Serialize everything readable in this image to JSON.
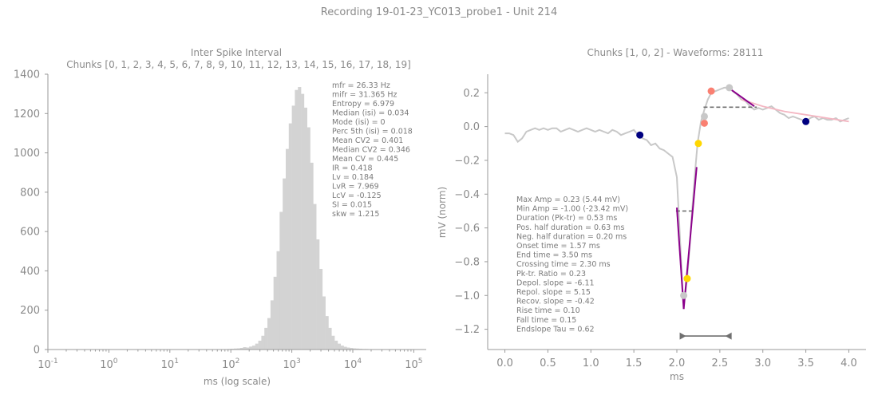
{
  "suptitle": "Recording 19-01-23_YC013_probe1 - Unit 214",
  "chart_data": [
    {
      "type": "histogram",
      "title": "Inter Spike Interval",
      "subtitle": "Chunks [0, 1, 2, 3, 4, 5, 6, 7, 8, 9, 10, 11, 12, 13, 14, 15, 16, 17, 18, 19]",
      "xlabel": "ms (log scale)",
      "ylabel": "",
      "xscale": "log",
      "xlim": [
        0.1,
        160000
      ],
      "ylim": [
        0,
        1400
      ],
      "xticks": [
        "10^-1",
        "10^0",
        "10^1",
        "10^2",
        "10^3",
        "10^4",
        "10^5"
      ],
      "yticks": [
        0,
        200,
        400,
        600,
        800,
        1000,
        1200,
        1400
      ],
      "bar_color": "#d3d3d3",
      "bins_log10": [
        [
          1.9,
          2
        ],
        [
          1.95,
          3
        ],
        [
          2.0,
          4
        ],
        [
          2.05,
          5
        ],
        [
          2.1,
          6
        ],
        [
          2.15,
          8
        ],
        [
          2.2,
          12
        ],
        [
          2.25,
          10
        ],
        [
          2.3,
          15
        ],
        [
          2.35,
          20
        ],
        [
          2.4,
          30
        ],
        [
          2.45,
          45
        ],
        [
          2.5,
          70
        ],
        [
          2.55,
          110
        ],
        [
          2.6,
          160
        ],
        [
          2.65,
          250
        ],
        [
          2.7,
          370
        ],
        [
          2.75,
          500
        ],
        [
          2.8,
          700
        ],
        [
          2.85,
          870
        ],
        [
          2.9,
          1020
        ],
        [
          2.95,
          1150
        ],
        [
          3.0,
          1240
        ],
        [
          3.05,
          1320
        ],
        [
          3.1,
          1335
        ],
        [
          3.15,
          1300
        ],
        [
          3.2,
          1230
        ],
        [
          3.25,
          1130
        ],
        [
          3.3,
          950
        ],
        [
          3.35,
          740
        ],
        [
          3.4,
          560
        ],
        [
          3.45,
          410
        ],
        [
          3.5,
          270
        ],
        [
          3.55,
          170
        ],
        [
          3.6,
          110
        ],
        [
          3.65,
          70
        ],
        [
          3.7,
          45
        ],
        [
          3.75,
          30
        ],
        [
          3.8,
          20
        ],
        [
          3.85,
          14
        ],
        [
          3.9,
          10
        ],
        [
          3.95,
          8
        ],
        [
          4.0,
          6
        ],
        [
          4.05,
          5
        ],
        [
          4.1,
          4
        ],
        [
          4.15,
          3
        ],
        [
          4.2,
          3
        ],
        [
          4.25,
          2
        ],
        [
          4.3,
          2
        ],
        [
          4.35,
          1
        ]
      ],
      "stats_text": [
        "mfr = 26.33 Hz",
        "mifr = 31.365 Hz",
        "Entropy = 6.979",
        "Median (isi) = 0.034",
        "Mode (isi) = 0",
        "Perc 5th (isi) = 0.018",
        "Mean CV2 = 0.401",
        "Median CV2 = 0.346",
        "Mean CV = 0.445",
        "IR = 0.418",
        "Lv = 0.184",
        "LvR = 7.969",
        "LcV = -0.125",
        "SI = 0.015",
        "skw = 1.215"
      ]
    },
    {
      "type": "line",
      "title": "Chunks [1, 0, 2] - Waveforms: 28111",
      "xlabel": "ms",
      "ylabel": "mV (norm)",
      "xlim": [
        -0.2,
        4.2
      ],
      "ylim": [
        -1.32,
        0.31
      ],
      "xticks": [
        0.0,
        0.5,
        1.0,
        1.5,
        2.0,
        2.5,
        3.0,
        3.5,
        4.0
      ],
      "yticks": [
        0.2,
        0.0,
        -0.2,
        -0.4,
        -0.6,
        -0.8,
        -1.0,
        -1.2
      ],
      "waveform_color": "#c8c8c8",
      "waveform": [
        [
          0.0,
          -0.04
        ],
        [
          0.05,
          -0.04
        ],
        [
          0.1,
          -0.05
        ],
        [
          0.15,
          -0.09
        ],
        [
          0.2,
          -0.07
        ],
        [
          0.25,
          -0.03
        ],
        [
          0.3,
          -0.02
        ],
        [
          0.35,
          -0.01
        ],
        [
          0.4,
          -0.02
        ],
        [
          0.45,
          -0.01
        ],
        [
          0.5,
          -0.02
        ],
        [
          0.55,
          -0.01
        ],
        [
          0.6,
          -0.01
        ],
        [
          0.65,
          -0.03
        ],
        [
          0.7,
          -0.02
        ],
        [
          0.75,
          -0.01
        ],
        [
          0.8,
          -0.02
        ],
        [
          0.85,
          -0.03
        ],
        [
          0.9,
          -0.02
        ],
        [
          0.95,
          -0.01
        ],
        [
          1.0,
          -0.02
        ],
        [
          1.05,
          -0.03
        ],
        [
          1.1,
          -0.02
        ],
        [
          1.15,
          -0.03
        ],
        [
          1.2,
          -0.04
        ],
        [
          1.25,
          -0.02
        ],
        [
          1.3,
          -0.03
        ],
        [
          1.35,
          -0.05
        ],
        [
          1.4,
          -0.04
        ],
        [
          1.45,
          -0.03
        ],
        [
          1.5,
          -0.02
        ],
        [
          1.55,
          -0.05
        ],
        [
          1.6,
          -0.07
        ],
        [
          1.65,
          -0.08
        ],
        [
          1.7,
          -0.11
        ],
        [
          1.75,
          -0.1
        ],
        [
          1.8,
          -0.13
        ],
        [
          1.85,
          -0.14
        ],
        [
          1.9,
          -0.16
        ],
        [
          1.95,
          -0.18
        ],
        [
          2.0,
          -0.3
        ],
        [
          2.02,
          -0.5
        ],
        [
          2.05,
          -0.8
        ],
        [
          2.07,
          -1.0
        ],
        [
          2.09,
          -1.02
        ],
        [
          2.12,
          -0.9
        ],
        [
          2.15,
          -0.7
        ],
        [
          2.18,
          -0.48
        ],
        [
          2.21,
          -0.28
        ],
        [
          2.24,
          -0.1
        ],
        [
          2.28,
          0.03
        ],
        [
          2.32,
          0.1
        ],
        [
          2.36,
          0.16
        ],
        [
          2.4,
          0.2
        ],
        [
          2.45,
          0.21
        ],
        [
          2.5,
          0.22
        ],
        [
          2.55,
          0.23
        ],
        [
          2.6,
          0.23
        ],
        [
          2.65,
          0.21
        ],
        [
          2.7,
          0.19
        ],
        [
          2.75,
          0.16
        ],
        [
          2.8,
          0.15
        ],
        [
          2.85,
          0.12
        ],
        [
          2.9,
          0.1
        ],
        [
          2.95,
          0.11
        ],
        [
          3.0,
          0.1
        ],
        [
          3.05,
          0.11
        ],
        [
          3.1,
          0.12
        ],
        [
          3.15,
          0.1
        ],
        [
          3.2,
          0.08
        ],
        [
          3.25,
          0.07
        ],
        [
          3.3,
          0.05
        ],
        [
          3.35,
          0.06
        ],
        [
          3.4,
          0.05
        ],
        [
          3.45,
          0.04
        ],
        [
          3.5,
          0.03
        ],
        [
          3.55,
          0.05
        ],
        [
          3.6,
          0.06
        ],
        [
          3.65,
          0.04
        ],
        [
          3.7,
          0.05
        ],
        [
          3.75,
          0.04
        ],
        [
          3.8,
          0.04
        ],
        [
          3.85,
          0.05
        ],
        [
          3.9,
          0.03
        ],
        [
          3.95,
          0.04
        ],
        [
          4.0,
          0.05
        ]
      ],
      "depol_line": {
        "color": "#8b008b",
        "points": [
          [
            2.0,
            -0.48
          ],
          [
            2.08,
            -1.08
          ]
        ]
      },
      "repol_line": {
        "color": "#8b008b",
        "points": [
          [
            2.08,
            -1.08
          ],
          [
            2.23,
            -0.24
          ]
        ]
      },
      "recov_line": {
        "color": "#8b008b",
        "points": [
          [
            2.6,
            0.23
          ],
          [
            2.9,
            0.12
          ]
        ]
      },
      "decay_fit": {
        "color": "#f4b6c2",
        "points": [
          [
            2.75,
            0.16
          ],
          [
            3.0,
            0.12
          ],
          [
            3.25,
            0.09
          ],
          [
            3.5,
            0.07
          ],
          [
            3.75,
            0.05
          ],
          [
            4.0,
            0.03
          ]
        ]
      },
      "dashed_lines": [
        {
          "color": "#707070",
          "points": [
            [
              1.99,
              -0.5
            ],
            [
              2.18,
              -0.5
            ]
          ]
        },
        {
          "color": "#707070",
          "points": [
            [
              2.31,
              0.115
            ],
            [
              2.93,
              0.115
            ]
          ]
        }
      ],
      "markers": [
        {
          "x": 1.57,
          "y": -0.05,
          "color": "#000080"
        },
        {
          "x": 3.5,
          "y": 0.03,
          "color": "#000080"
        },
        {
          "x": 2.25,
          "y": -0.1,
          "color": "#ffd700"
        },
        {
          "x": 2.12,
          "y": -0.9,
          "color": "#ffd700"
        },
        {
          "x": 2.4,
          "y": 0.21,
          "color": "#fa8072"
        },
        {
          "x": 2.32,
          "y": 0.02,
          "color": "#fa8072"
        },
        {
          "x": 2.32,
          "y": 0.06,
          "color": "#c8c8c8"
        },
        {
          "x": 2.61,
          "y": 0.23,
          "color": "#c8c8c8"
        },
        {
          "x": 2.08,
          "y": -1.0,
          "color": "#c8c8c8"
        }
      ],
      "duration_arrow": {
        "color": "#707070",
        "x_from": 2.07,
        "x_to": 2.6,
        "y": -1.24
      },
      "stats_text": [
        "Max Amp = 0.23 (5.44 mV)",
        "Min Amp = -1.00 (-23.42 mV)",
        "Duration (Pk-tr) = 0.53 ms",
        "Pos. half duration = 0.63 ms",
        "Neg. half duration = 0.20 ms",
        "Onset time = 1.57 ms",
        "End time = 3.50 ms",
        "Crossing time = 2.30 ms",
        "Pk-tr. Ratio = 0.23",
        "Depol. slope = -6.11",
        "Repol. slope = 5.15",
        "Recov. slope = -0.42",
        "Rise time = 0.10",
        "Fall time = 0.15",
        "Endslope Tau = 0.62"
      ]
    }
  ]
}
